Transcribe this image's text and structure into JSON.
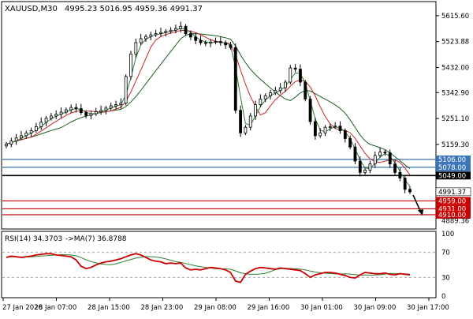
{
  "header": {
    "symbol_tf": "XAUUSD,M30",
    "ohlc": "4995.23 5016.95 4959.36 4991.37"
  },
  "rsi_header": {
    "label": "RSI(14) 34.3703",
    "ma_label": "->MA(7) 36.8788"
  },
  "colors": {
    "background": "#ffffff",
    "candle": "#000000",
    "ma_fast": "#2e7d32",
    "ma_slow": "#c62828",
    "ma_long": "#1b5e20",
    "support_line": "#cc0000",
    "resistance_line": "#3a74b6",
    "pivot_line": "#000000",
    "rsi_line": "#cc0000",
    "rsi_ma": "#2e7d32"
  },
  "chart_data": [
    {
      "type": "candlestick",
      "name": "price",
      "y_ticks": [
        "5615.60",
        "5523.88",
        "5432.00",
        "5342.90",
        "5251.10",
        "5159.30"
      ],
      "ylim": [
        4865,
        5660
      ],
      "x_labels": [
        "27 Jan 2026",
        "28 Jan 07:00",
        "28 Jan 15:00",
        "28 Jan 23:00",
        "29 Jan 08:00",
        "29 Jan 16:00",
        "30 Jan 01:00",
        "30 Jan 09:00",
        "30 Jan 17:00"
      ],
      "levels": [
        {
          "label": "5106.00",
          "kind": "resistance"
        },
        {
          "label": "5078.00",
          "kind": "resistance"
        },
        {
          "label": "5049.00",
          "kind": "pivot"
        },
        {
          "label": "4991.37",
          "kind": "current"
        },
        {
          "label": "4959.00",
          "kind": "support"
        },
        {
          "label": "4931.00",
          "kind": "support"
        },
        {
          "label": "4910.00",
          "kind": "support"
        }
      ],
      "axis_extra_label": "4889.36",
      "close_series": [
        5160,
        5172,
        5182,
        5190,
        5200,
        5208,
        5222,
        5238,
        5252,
        5260,
        5266,
        5274,
        5282,
        5290,
        5286,
        5272,
        5262,
        5268,
        5275,
        5280,
        5288,
        5296,
        5300,
        5306,
        5400,
        5480,
        5520,
        5534,
        5542,
        5548,
        5552,
        5556,
        5560,
        5564,
        5570,
        5578,
        5552,
        5540,
        5528,
        5520,
        5518,
        5522,
        5524,
        5520,
        5512,
        5503,
        5280,
        5200,
        5220,
        5260,
        5300,
        5320,
        5332,
        5342,
        5350,
        5360,
        5380,
        5430,
        5426,
        5380,
        5320,
        5240,
        5190,
        5200,
        5220,
        5222,
        5224,
        5208,
        5180,
        5150,
        5100,
        5060,
        5068,
        5090,
        5120,
        5132,
        5130,
        5090,
        5060,
        5040,
        5000,
        4991
      ],
      "rsi": {
        "y_ticks": [
          "100",
          "70",
          "30",
          "0"
        ],
        "ylim": [
          0,
          100
        ],
        "values": [
          62,
          64,
          63,
          62,
          63,
          64,
          66,
          67,
          68,
          68,
          66,
          65,
          64,
          63,
          58,
          48,
          44,
          46,
          50,
          53,
          55,
          56,
          58,
          60,
          63,
          66,
          68,
          66,
          62,
          58,
          56,
          55,
          52,
          53,
          52,
          53,
          45,
          42,
          43,
          42,
          44,
          46,
          45,
          44,
          42,
          38,
          24,
          22,
          35,
          40,
          44,
          46,
          45,
          44,
          43,
          45,
          44,
          43,
          42,
          41,
          36,
          30,
          34,
          36,
          38,
          38,
          37,
          35,
          33,
          30,
          29,
          34,
          38,
          37,
          36,
          36,
          37,
          35,
          34,
          36,
          35,
          34
        ]
      }
    }
  ]
}
